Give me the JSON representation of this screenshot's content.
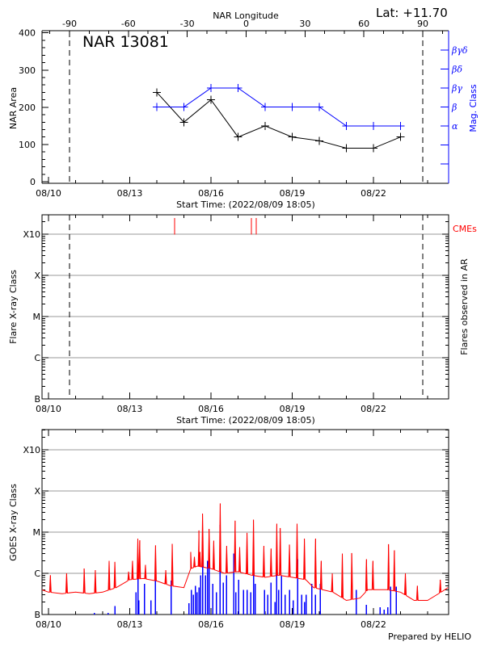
{
  "header": {
    "lat_label": "Lat: +11.70",
    "prepared_by": "Prepared by HELIO"
  },
  "chart_data": [
    {
      "type": "line",
      "title": "NAR 13081",
      "top_axis": {
        "label": "NAR Longitude",
        "ticks": [
          "-90",
          "-60",
          "-30",
          "0",
          "30",
          "60",
          "90"
        ]
      },
      "limb_markers_longitude": [
        -90,
        90
      ],
      "xlabel": "Start Time: (2022/08/09 18:05)",
      "x_ticks": [
        "08/10",
        "08/13",
        "08/16",
        "08/19",
        "08/22"
      ],
      "xlim": [
        "08/09 18:05",
        "08/24 18:05"
      ],
      "ylabel": "NAR Area",
      "ylim": [
        0,
        400
      ],
      "y_ticks": [
        "0",
        "100",
        "200",
        "300",
        "400"
      ],
      "y2label": "Mag. Class",
      "y2_ticks": [
        "α",
        "β",
        "βγ",
        "βδ",
        "βγδ"
      ],
      "x": [
        "08/14",
        "08/15",
        "08/16",
        "08/17",
        "08/18",
        "08/19",
        "08/20",
        "08/21",
        "08/22",
        "08/23"
      ],
      "series": [
        {
          "axis": "left",
          "color": "#000000",
          "values": [
            240,
            160,
            220,
            120,
            150,
            120,
            110,
            90,
            90,
            120
          ]
        },
        {
          "axis": "right",
          "color": "#0000ff",
          "values": [
            "β",
            "β",
            "βγ",
            "βγ",
            "β",
            "β",
            "β",
            "α",
            "α",
            "α"
          ]
        }
      ]
    },
    {
      "type": "bar",
      "xlabel": "Start Time: (2022/08/09 18:05)",
      "x_ticks": [
        "08/10",
        "08/13",
        "08/16",
        "08/19",
        "08/22"
      ],
      "xlim": [
        "08/09 18:05",
        "08/24 18:05"
      ],
      "ylabel": "Flare X-ray Class",
      "yscale": "log",
      "y_ticks": [
        "B",
        "C",
        "M",
        "X",
        "X10"
      ],
      "y2label": "Flares observed in AR",
      "grid": true,
      "limb_markers_longitude": [
        -90,
        90
      ],
      "flares": [],
      "cmes": {
        "label": "CMEs",
        "color": "#ff0000",
        "times": [
          "08/14 15:35",
          "08/17 11:45",
          "08/17 16:05"
        ]
      }
    },
    {
      "type": "line",
      "x_ticks": [
        "08/10",
        "08/13",
        "08/16",
        "08/19",
        "08/22"
      ],
      "xlim": [
        "08/09 18:05",
        "08/24 18:05"
      ],
      "ylabel": "GOES X-ray Class",
      "yscale": "log",
      "y_ticks": [
        "B",
        "C",
        "M",
        "X",
        "X10"
      ],
      "grid": true,
      "goes_flux": {
        "color": "#ff0000",
        "background": [
          [
            "08/09 18:05",
            4e-07
          ],
          [
            "08/10 00:00",
            3.5e-07
          ],
          [
            "08/10 12:00",
            3.2e-07
          ],
          [
            "08/11 00:00",
            3.5e-07
          ],
          [
            "08/11 12:00",
            3.2e-07
          ],
          [
            "08/12 00:00",
            3.5e-07
          ],
          [
            "08/12 12:00",
            4.5e-07
          ],
          [
            "08/13 00:00",
            7e-07
          ],
          [
            "08/13 12:00",
            7.5e-07
          ],
          [
            "08/14 00:00",
            6.5e-07
          ],
          [
            "08/14 12:00",
            5e-07
          ],
          [
            "08/15 00:00",
            4.5e-07
          ],
          [
            "08/15 06:00",
            1.3e-06
          ],
          [
            "08/15 12:00",
            1.5e-06
          ],
          [
            "08/16 00:00",
            1.3e-06
          ],
          [
            "08/16 12:00",
            1e-06
          ],
          [
            "08/17 00:00",
            1.1e-06
          ],
          [
            "08/17 12:00",
            9e-07
          ],
          [
            "08/18 00:00",
            8e-07
          ],
          [
            "08/18 12:00",
            9e-07
          ],
          [
            "08/19 00:00",
            8e-07
          ],
          [
            "08/19 12:00",
            7e-07
          ],
          [
            "08/19 19:00",
            4.5e-07
          ],
          [
            "08/20 12:00",
            3.5e-07
          ],
          [
            "08/21 00:00",
            2.2e-07
          ],
          [
            "08/21 12:00",
            2.5e-07
          ],
          [
            "08/21 19:00",
            4e-07
          ],
          [
            "08/22 12:00",
            4e-07
          ],
          [
            "08/23 00:00",
            3.5e-07
          ],
          [
            "08/23 12:00",
            2.2e-07
          ],
          [
            "08/24 00:00",
            2.2e-07
          ],
          [
            "08/24 12:00",
            3.5e-07
          ],
          [
            "08/24 18:05",
            4.5e-07
          ]
        ],
        "peaks": [
          [
            "08/10 01:40",
            9e-07
          ],
          [
            "08/10 16:05",
            1e-06
          ],
          [
            "08/11 07:40",
            1.3e-06
          ],
          [
            "08/11 17:30",
            1.2e-06
          ],
          [
            "08/12 05:45",
            2e-06
          ],
          [
            "08/12 10:50",
            1.9e-06
          ],
          [
            "08/12 23:00",
            1.1e-06
          ],
          [
            "08/13 02:25",
            2e-06
          ],
          [
            "08/13 07:10",
            6.9e-06
          ],
          [
            "08/13 08:50",
            6.3e-06
          ],
          [
            "08/13 13:55",
            1.6e-06
          ],
          [
            "08/13 22:50",
            4.8e-06
          ],
          [
            "08/14 07:55",
            1.2e-06
          ],
          [
            "08/14 13:40",
            5.2e-06
          ],
          [
            "08/15 06:00",
            3.3e-06
          ],
          [
            "08/15 09:20",
            2.5e-06
          ],
          [
            "08/15 13:25",
            1.1e-05
          ],
          [
            "08/15 14:10",
            3.3e-06
          ],
          [
            "08/15 16:35",
            2.8e-05
          ],
          [
            "08/15 22:20",
            1.2e-05
          ],
          [
            "08/16 02:25",
            6.2e-06
          ],
          [
            "08/16 08:10",
            5e-05
          ],
          [
            "08/16 13:55",
            4.6e-06
          ],
          [
            "08/16 21:20",
            1.9e-05
          ],
          [
            "08/17 01:25",
            4.3e-06
          ],
          [
            "08/17 07:55",
            9.6e-06
          ],
          [
            "08/17 13:40",
            2e-05
          ],
          [
            "08/17 22:50",
            4.6e-06
          ],
          [
            "08/18 05:15",
            4e-06
          ],
          [
            "08/18 10:20",
            1.6e-05
          ],
          [
            "08/18 13:25",
            1.26e-05
          ],
          [
            "08/18 21:35",
            5e-06
          ],
          [
            "08/19 04:20",
            1.6e-05
          ],
          [
            "08/19 10:50",
            6.9e-06
          ],
          [
            "08/19 20:40",
            6.9e-06
          ],
          [
            "08/20 01:40",
            2e-06
          ],
          [
            "08/20 11:30",
            1e-06
          ],
          [
            "08/20 20:25",
            3e-06
          ],
          [
            "08/21 04:50",
            3.1e-06
          ],
          [
            "08/21 17:45",
            2.2e-06
          ],
          [
            "08/21 23:30",
            2e-06
          ],
          [
            "08/22 13:25",
            5.1e-06
          ],
          [
            "08/22 18:30",
            3.6e-06
          ],
          [
            "08/23 04:20",
            1e-06
          ],
          [
            "08/23 14:55",
            5e-07
          ],
          [
            "08/24 11:15",
            7e-07
          ]
        ]
      },
      "ar_flares": {
        "color": "#0000ff",
        "events": [
          [
            "08/11 16:50",
            1.1e-07
          ],
          [
            "08/12 05:00",
            1.1e-07
          ],
          [
            "08/12 10:50",
            1.6e-07
          ],
          [
            "08/13 05:30",
            3.5e-07
          ],
          [
            "08/13 07:10",
            1e-06
          ],
          [
            "08/13 07:55",
            2.2e-07
          ],
          [
            "08/13 13:00",
            5.6e-07
          ],
          [
            "08/13 18:45",
            2.2e-07
          ],
          [
            "08/13 22:50",
            1.6e-06
          ],
          [
            "08/14 12:45",
            6.6e-07
          ],
          [
            "08/15 04:20",
            1.9e-07
          ],
          [
            "08/15 06:45",
            4e-07
          ],
          [
            "08/15 08:25",
            3e-07
          ],
          [
            "08/15 10:05",
            5e-07
          ],
          [
            "08/15 11:45",
            3.5e-07
          ],
          [
            "08/15 13:25",
            4.5e-07
          ],
          [
            "08/15 14:55",
            9e-07
          ],
          [
            "08/15 16:35",
            5.6e-06
          ],
          [
            "08/15 19:10",
            9e-07
          ],
          [
            "08/15 20:55",
            2e-06
          ],
          [
            "08/15 22:20",
            1.9e-06
          ],
          [
            "08/16 01:40",
            5.6e-07
          ],
          [
            "08/16 05:00",
            3.5e-07
          ],
          [
            "08/16 08:10",
            1.5e-05
          ],
          [
            "08/16 10:50",
            6e-07
          ],
          [
            "08/16 13:55",
            9e-07
          ],
          [
            "08/16 20:25",
            3e-06
          ],
          [
            "08/16 22:05",
            3.5e-07
          ],
          [
            "08/17 00:30",
            6.9e-07
          ],
          [
            "08/17 04:50",
            4e-07
          ],
          [
            "08/17 07:55",
            4e-07
          ],
          [
            "08/17 11:15",
            3.5e-07
          ],
          [
            "08/17 13:40",
            4.5e-06
          ],
          [
            "08/17 15:20",
            5.6e-07
          ],
          [
            "08/17 23:30",
            4e-07
          ],
          [
            "08/18 02:10",
            3e-07
          ],
          [
            "08/18 05:15",
            5.9e-07
          ],
          [
            "08/18 08:40",
            2e-07
          ],
          [
            "08/18 10:20",
            2.5e-06
          ],
          [
            "08/18 12:00",
            4e-07
          ],
          [
            "08/18 14:25",
            9e-07
          ],
          [
            "08/18 17:45",
            3e-07
          ],
          [
            "08/18 21:35",
            4e-07
          ],
          [
            "08/19 01:00",
            2.2e-07
          ],
          [
            "08/19 05:00",
            2.2e-06
          ],
          [
            "08/19 08:25",
            3e-07
          ],
          [
            "08/19 10:50",
            2e-07
          ],
          [
            "08/19 12:30",
            3e-07
          ],
          [
            "08/19 17:30",
            5.6e-07
          ],
          [
            "08/19 20:40",
            3e-07
          ],
          [
            "08/20 00:45",
            5.6e-07
          ],
          [
            "08/21 08:55",
            4e-07
          ],
          [
            "08/21 17:45",
            1.7e-07
          ],
          [
            "08/22 06:00",
            1.5e-07
          ],
          [
            "08/22 09:20",
            1.3e-07
          ],
          [
            "08/22 12:45",
            1.5e-07
          ],
          [
            "08/22 15:05",
            4.7e-07
          ],
          [
            "08/22 20:10",
            4.7e-07
          ]
        ]
      }
    }
  ]
}
